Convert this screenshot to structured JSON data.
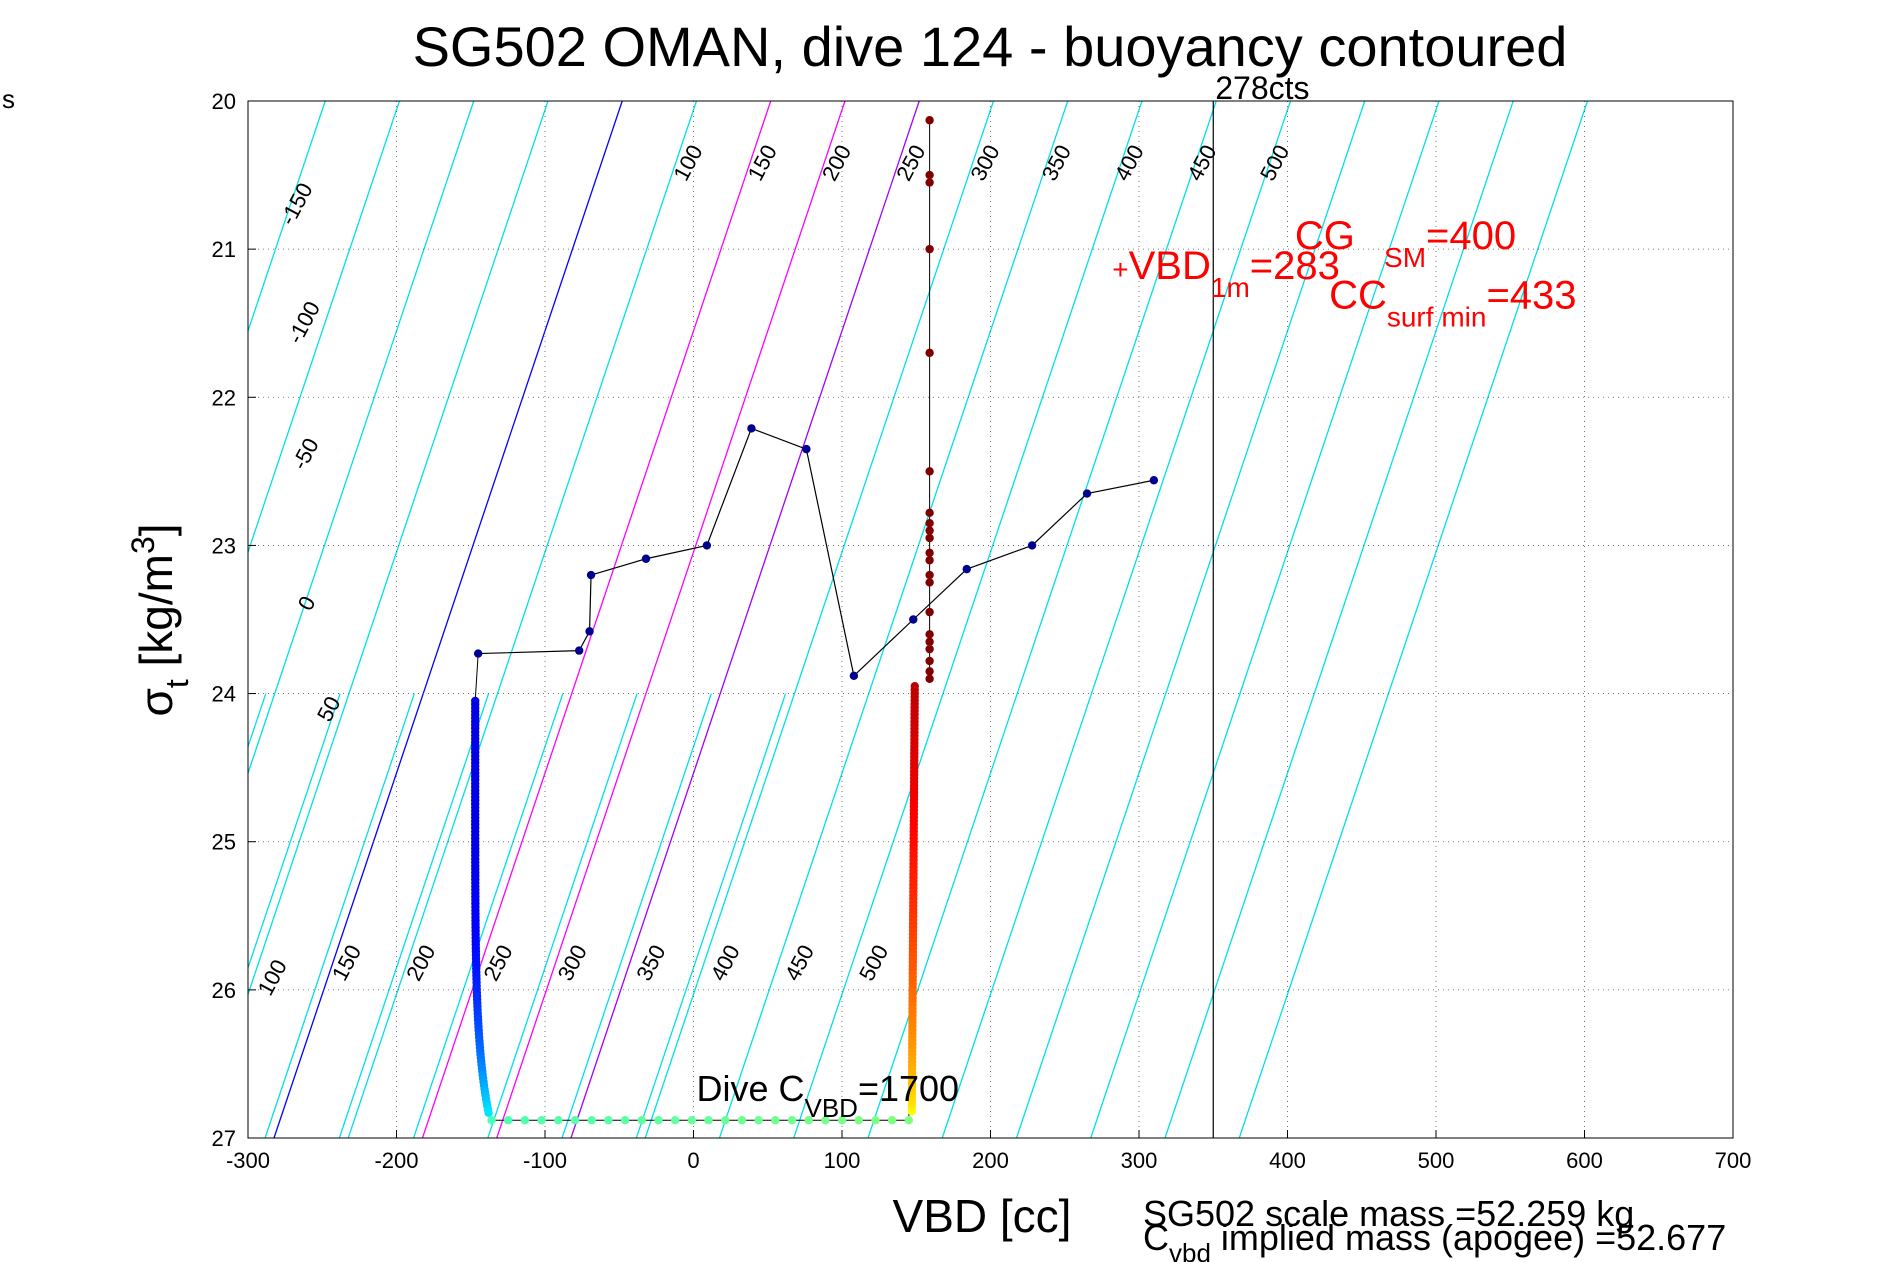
{
  "chart_data": {
    "type": "scatter",
    "title": "SG502 OMAN, dive 124 - buoyancy contoured",
    "xlabel": "VBD [cc]",
    "ylabel_main": "σ",
    "ylabel_sub": "t",
    "ylabel_rest": " [kg/m",
    "ylabel_sup": "3",
    "ylabel_end": "]",
    "corner_label": "s",
    "xlim": [
      -300,
      700
    ],
    "ylim": [
      20,
      27
    ],
    "y_reversed": true,
    "grid": true,
    "x_ticks": [
      -300,
      -200,
      -100,
      0,
      100,
      200,
      300,
      400,
      500,
      600,
      700
    ],
    "y_ticks": [
      20,
      21,
      22,
      23,
      24,
      25,
      26,
      27
    ],
    "x_tick_labels": [
      "-300",
      "-200",
      "-100",
      "0",
      "100",
      "200",
      "300",
      "400",
      "500",
      "600",
      "700"
    ],
    "y_tick_labels": [
      "20",
      "21",
      "22",
      "23",
      "24",
      "25",
      "26",
      "27"
    ],
    "contours": {
      "slope_cc_per_sigma": -33.5,
      "step": 50,
      "zero_x_at_sigma_20": -48,
      "upper_values": [
        -200,
        -150,
        -100,
        -50,
        0,
        50,
        100,
        150,
        200,
        250,
        300,
        350,
        400,
        450,
        500,
        550,
        600,
        650
      ],
      "lower_values": [
        50,
        100,
        150,
        200,
        250,
        300,
        350,
        400,
        450,
        500,
        550,
        600
      ],
      "lower_zero_x_at_sigma_20": -304,
      "upper_labels": [
        {
          "text": "-150",
          "x": -270,
          "y": 20.85
        },
        {
          "text": "-100",
          "x": -265,
          "y": 21.65
        },
        {
          "text": "-50",
          "x": -262,
          "y": 22.5
        },
        {
          "text": "0",
          "x": -258,
          "y": 23.45
        },
        {
          "text": "50",
          "x": -245,
          "y": 24.2
        },
        {
          "text": "100",
          "x": -5,
          "y": 20.55
        },
        {
          "text": "150",
          "x": 45,
          "y": 20.55
        },
        {
          "text": "200",
          "x": 95,
          "y": 20.55
        },
        {
          "text": "250",
          "x": 145,
          "y": 20.55
        },
        {
          "text": "300",
          "x": 195,
          "y": 20.55
        },
        {
          "text": "350",
          "x": 243,
          "y": 20.55
        },
        {
          "text": "400",
          "x": 292,
          "y": 20.55
        },
        {
          "text": "450",
          "x": 341,
          "y": 20.55
        },
        {
          "text": "500",
          "x": 390,
          "y": 20.55
        }
      ],
      "lower_labels": [
        {
          "text": "100",
          "x": -285,
          "y": 26.05
        },
        {
          "text": "150",
          "x": -235,
          "y": 25.95
        },
        {
          "text": "200",
          "x": -185,
          "y": 25.95
        },
        {
          "text": "250",
          "x": -133,
          "y": 25.95
        },
        {
          "text": "300",
          "x": -83,
          "y": 25.95
        },
        {
          "text": "350",
          "x": -30,
          "y": 25.95
        },
        {
          "text": "400",
          "x": 20,
          "y": 25.95
        },
        {
          "text": "450",
          "x": 70,
          "y": 25.95
        },
        {
          "text": "500",
          "x": 120,
          "y": 25.95
        }
      ],
      "colors": {
        "default": "#00e0e8",
        "zero": "#0000ff",
        "hundreds": "#ff00ff",
        "two_hundred": "#a000ff"
      }
    },
    "vertical_line": {
      "x": 350,
      "label": "278cts"
    },
    "series": [
      {
        "points_profile": [
          {
            "x": -145,
            "y": 23.73
          },
          {
            "x": -77,
            "y": 23.71
          },
          {
            "x": -70,
            "y": 23.58
          },
          {
            "x": -69,
            "y": 23.2
          },
          {
            "x": -32,
            "y": 23.09
          },
          {
            "x": 9,
            "y": 23.0
          },
          {
            "x": 39,
            "y": 22.21
          },
          {
            "x": 76,
            "y": 22.35
          },
          {
            "x": 108,
            "y": 23.88
          },
          {
            "x": 148,
            "y": 23.5
          },
          {
            "x": 184,
            "y": 23.16
          },
          {
            "x": 228,
            "y": 23.0
          },
          {
            "x": 265,
            "y": 22.65
          },
          {
            "x": 310,
            "y": 22.56
          }
        ]
      },
      {
        "descent_x_start": -147,
        "descent_x_end": -138,
        "descent_y_start": 24.05,
        "descent_y_end": 26.83
      },
      {
        "bottom_x_start": -136,
        "bottom_x_end": 145,
        "bottom_y": 26.88
      },
      {
        "ascent_x_start": 149,
        "ascent_x_end": 147,
        "ascent_y_start": 23.95,
        "ascent_y_end": 26.82
      },
      {
        "top_points": [
          {
            "x": 159,
            "y": 20.13
          },
          {
            "x": 159,
            "y": 20.5
          },
          {
            "x": 159,
            "y": 20.55
          },
          {
            "x": 159,
            "y": 21.0
          },
          {
            "x": 159,
            "y": 21.7
          },
          {
            "x": 159,
            "y": 22.5
          },
          {
            "x": 159,
            "y": 22.78
          },
          {
            "x": 159,
            "y": 22.85
          },
          {
            "x": 159,
            "y": 22.9
          },
          {
            "x": 159,
            "y": 22.95
          },
          {
            "x": 159,
            "y": 23.05
          },
          {
            "x": 159,
            "y": 23.1
          },
          {
            "x": 159,
            "y": 23.2
          },
          {
            "x": 159,
            "y": 23.25
          },
          {
            "x": 159,
            "y": 23.45
          },
          {
            "x": 159,
            "y": 23.6
          },
          {
            "x": 159,
            "y": 23.65
          },
          {
            "x": 159,
            "y": 23.7
          },
          {
            "x": 159,
            "y": 23.78
          },
          {
            "x": 159,
            "y": 23.85
          },
          {
            "x": 159,
            "y": 23.9
          }
        ]
      }
    ],
    "annotations": {
      "vbd1m": {
        "plus": "+",
        "main": "VBD",
        "sub": "1m",
        "rest": "=283",
        "x": 282,
        "y": 21.2
      },
      "cg": {
        "text": "CG",
        "x": 405,
        "y": 21.0
      },
      "sm": {
        "sub": "SM",
        "rest": "=400",
        "x": 465,
        "y": 21.0
      },
      "ccsurf": {
        "main": "CC",
        "sub": "surf min",
        "rest": "=433",
        "x": 428,
        "y": 21.4
      },
      "divecvbd": {
        "main": "Dive C",
        "sub": "VBD",
        "rest": "=1700",
        "x": 2,
        "y": 26.75
      },
      "scale_mass": {
        "text": "SG502 scale mass =52.259 kg"
      },
      "implied": {
        "main": "C",
        "sub": "vbd",
        "rest": " implied mass (apogee) =52.677"
      }
    }
  }
}
